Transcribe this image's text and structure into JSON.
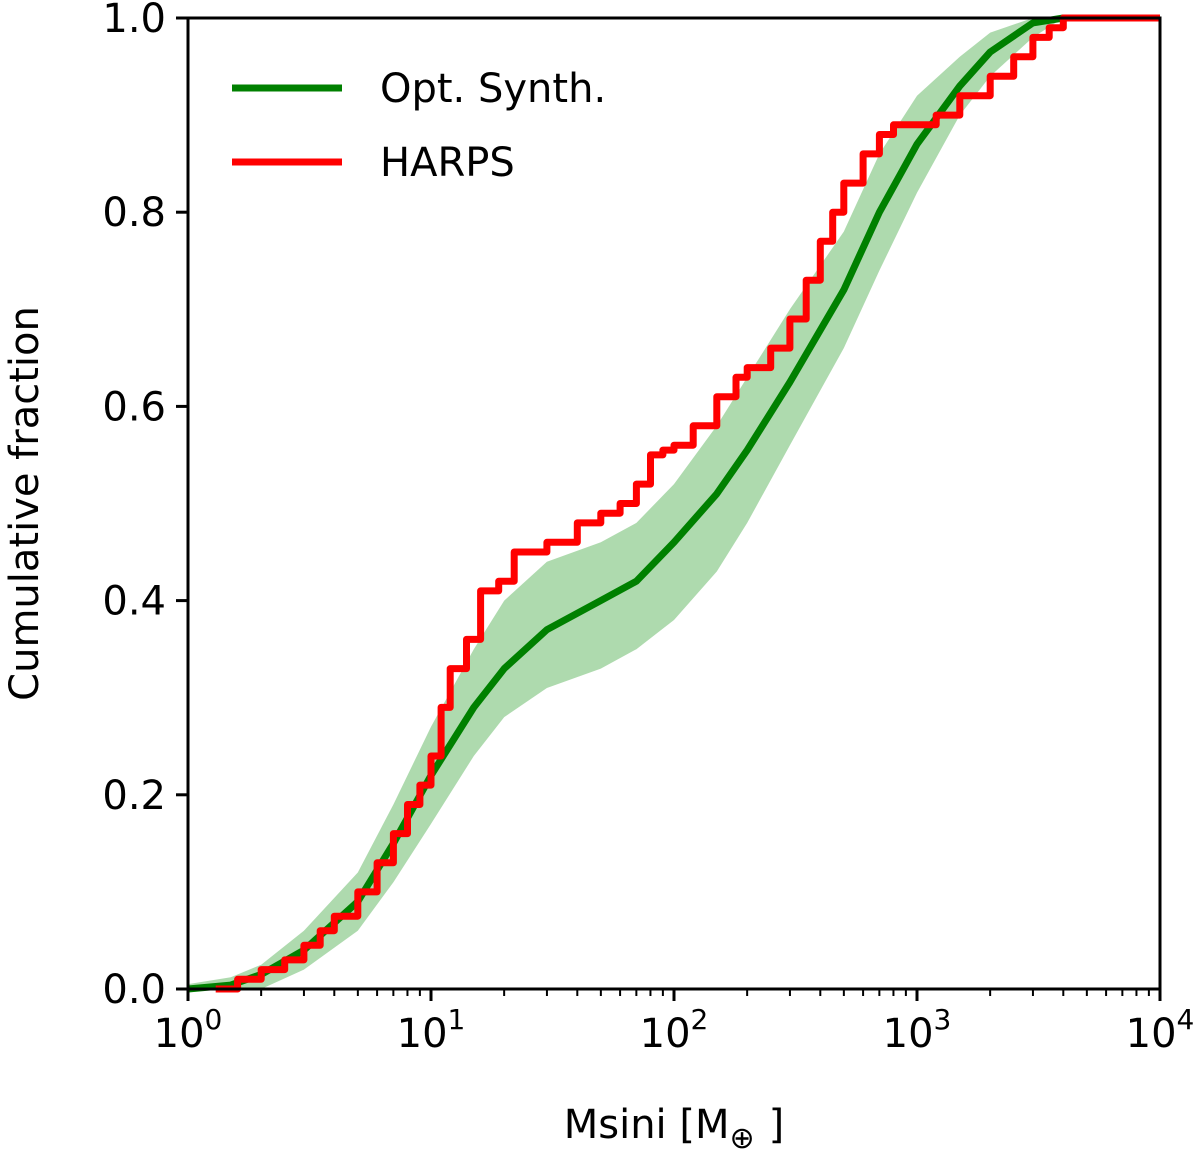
{
  "chart_data": {
    "type": "line",
    "title": "",
    "xlabel": {
      "base": "Msini [M",
      "subscript": "⊕",
      "close": "]"
    },
    "ylabel": "Cumulative fraction",
    "xscale": "log",
    "xlim": [
      1,
      10000
    ],
    "ylim": [
      0,
      1
    ],
    "legend_position": "top-left",
    "x_ticks": [
      {
        "value": 1,
        "base": "10",
        "exp": "0"
      },
      {
        "value": 10,
        "base": "10",
        "exp": "1"
      },
      {
        "value": 100,
        "base": "10",
        "exp": "2"
      },
      {
        "value": 1000,
        "base": "10",
        "exp": "3"
      },
      {
        "value": 10000,
        "base": "10",
        "exp": "4"
      }
    ],
    "y_ticks": [
      {
        "value": 0.0,
        "label": "0.0"
      },
      {
        "value": 0.2,
        "label": "0.2"
      },
      {
        "value": 0.4,
        "label": "0.4"
      },
      {
        "value": 0.6,
        "label": "0.6"
      },
      {
        "value": 0.8,
        "label": "0.8"
      },
      {
        "value": 1.0,
        "label": "1.0"
      }
    ],
    "colors": {
      "synth": "#008000",
      "harps": "#ff0000",
      "band": "#7cc47c"
    },
    "band": {
      "x": [
        1,
        1.5,
        2,
        3,
        5,
        7,
        10,
        15,
        20,
        30,
        50,
        70,
        100,
        150,
        200,
        300,
        500,
        700,
        1000,
        1500,
        2000,
        3000,
        4000,
        5000,
        10000
      ],
      "lower": [
        0,
        0,
        0,
        0.02,
        0.06,
        0.11,
        0.17,
        0.24,
        0.28,
        0.31,
        0.33,
        0.35,
        0.38,
        0.43,
        0.48,
        0.56,
        0.66,
        0.74,
        0.82,
        0.9,
        0.94,
        0.98,
        1.0,
        1.0,
        1.0
      ],
      "upper": [
        0.005,
        0.012,
        0.025,
        0.06,
        0.12,
        0.19,
        0.27,
        0.35,
        0.4,
        0.44,
        0.46,
        0.48,
        0.52,
        0.58,
        0.63,
        0.7,
        0.78,
        0.86,
        0.92,
        0.96,
        0.985,
        1.0,
        1.0,
        1.0,
        1.0
      ]
    },
    "series": [
      {
        "name": "Opt. Synth.",
        "x": [
          1,
          1.5,
          2,
          3,
          5,
          7,
          10,
          15,
          20,
          30,
          50,
          70,
          100,
          150,
          200,
          300,
          500,
          700,
          1000,
          1500,
          2000,
          3000,
          4000,
          10000
        ],
        "y": [
          0,
          0.004,
          0.015,
          0.04,
          0.09,
          0.15,
          0.22,
          0.29,
          0.33,
          0.37,
          0.4,
          0.42,
          0.46,
          0.51,
          0.555,
          0.625,
          0.72,
          0.8,
          0.87,
          0.93,
          0.965,
          0.995,
          1.0,
          1.0
        ]
      },
      {
        "name": "HARPS",
        "step": true,
        "x": [
          1.3,
          1.6,
          2.0,
          2.5,
          3.0,
          3.5,
          4.0,
          5.0,
          6.0,
          7.0,
          8.0,
          9.0,
          10,
          11,
          12,
          14,
          16,
          19,
          22,
          25,
          30,
          40,
          50,
          60,
          70,
          80,
          90,
          100,
          120,
          150,
          180,
          200,
          250,
          300,
          350,
          400,
          450,
          500,
          600,
          700,
          800,
          1000,
          1200,
          1500,
          2000,
          2500,
          3000,
          3500,
          4000,
          5000,
          10000
        ],
        "y": [
          0,
          0.01,
          0.02,
          0.03,
          0.045,
          0.06,
          0.075,
          0.1,
          0.13,
          0.16,
          0.19,
          0.21,
          0.24,
          0.29,
          0.33,
          0.36,
          0.41,
          0.42,
          0.45,
          0.45,
          0.46,
          0.48,
          0.49,
          0.5,
          0.52,
          0.55,
          0.555,
          0.56,
          0.58,
          0.61,
          0.63,
          0.64,
          0.66,
          0.69,
          0.73,
          0.77,
          0.8,
          0.83,
          0.86,
          0.88,
          0.89,
          0.89,
          0.9,
          0.92,
          0.94,
          0.96,
          0.98,
          0.99,
          1.0,
          1.0,
          1.0
        ]
      }
    ]
  }
}
